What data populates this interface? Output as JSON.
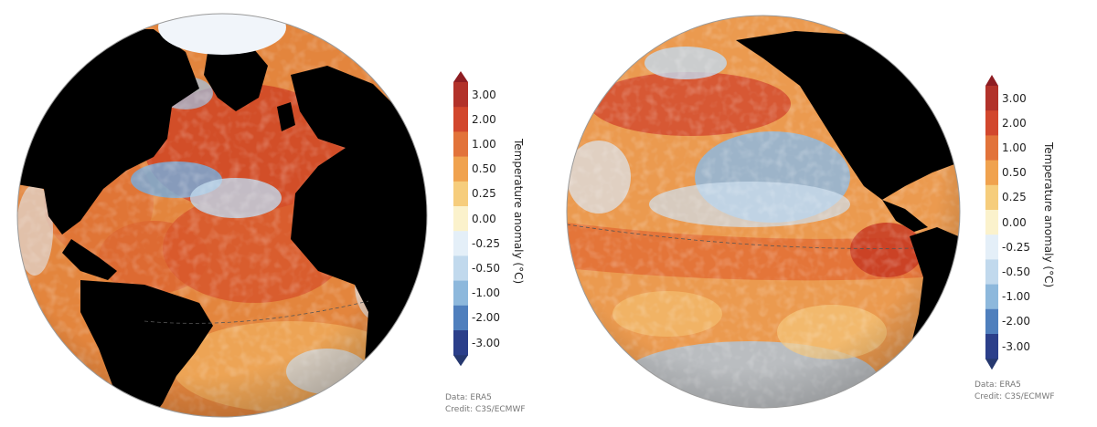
{
  "colors": {
    "ocean_warm": "#e3853d",
    "ocean_hot": "#cf4425",
    "ocean_cool": "#bfd8ec",
    "ocean_cold": "#5d93c8",
    "land": "#000000",
    "ice": "#f1f5fa"
  },
  "legend": {
    "title": "Temperature anomaly (°C)",
    "ticks": [
      "3.00",
      "2.00",
      "1.00",
      "0.50",
      "0.25",
      "0.00",
      "-0.25",
      "-0.50",
      "-1.00",
      "-2.00",
      "-3.00"
    ],
    "tick_colors": [
      "#b2322a",
      "#d2472d",
      "#e2733a",
      "#f0a24e",
      "#f6cd7c",
      "#fbf2cc",
      "#e4eff8",
      "#c1d9ed",
      "#8db8dc",
      "#4f7fbd",
      "#2b3f8a"
    ],
    "arrow_top_color": "#8e1d22",
    "arrow_bottom_color": "#26386f"
  },
  "credits": {
    "data": "Data: ERA5",
    "credit": "Credit: C3S/ECMWF"
  }
}
